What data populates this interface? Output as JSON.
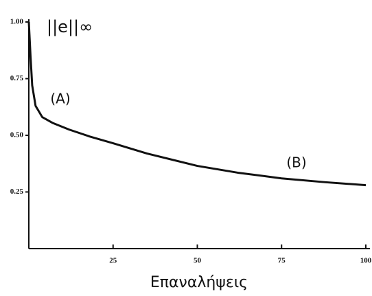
{
  "chart_data": {
    "type": "line",
    "y_label": "||e||∞",
    "x_label": "Επαναλήψεις",
    "annotations": [
      "(A)",
      "(B)"
    ],
    "x": [
      0,
      0.5,
      1,
      2,
      4,
      7,
      12,
      18,
      25,
      35,
      50,
      62,
      75,
      88,
      100
    ],
    "series": [
      {
        "color": "#111111",
        "values": [
          1.0,
          0.85,
          0.72,
          0.63,
          0.58,
          0.555,
          0.525,
          0.495,
          0.465,
          0.42,
          0.365,
          0.335,
          0.31,
          0.293,
          0.28
        ]
      }
    ],
    "xlim": [
      0,
      100
    ],
    "ylim": [
      0,
      1
    ],
    "xticks": [
      25,
      50,
      75,
      100
    ],
    "yticks": [
      0.25,
      {
        "value": 0.5,
        "label": "0.50"
      },
      0.75,
      {
        "value": 1,
        "label": "1.00"
      }
    ]
  }
}
